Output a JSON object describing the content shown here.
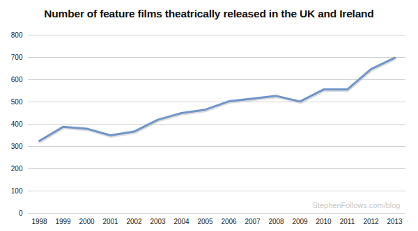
{
  "chart_data": {
    "type": "line",
    "title": "Number of feature films theatrically released in the UK and Ireland",
    "categories": [
      "1998",
      "1999",
      "2000",
      "2001",
      "2002",
      "2003",
      "2004",
      "2005",
      "2006",
      "2007",
      "2008",
      "2009",
      "2010",
      "2011",
      "2012",
      "2013"
    ],
    "values": [
      325,
      388,
      380,
      350,
      367,
      420,
      450,
      465,
      503,
      515,
      527,
      502,
      556,
      556,
      647,
      698
    ],
    "color": "#6f95c8",
    "ylim": [
      0,
      800
    ],
    "yticks": [
      0,
      100,
      200,
      300,
      400,
      500,
      600,
      700,
      800
    ],
    "grid": true,
    "annotations": [
      "StephenFollows.com/blog"
    ]
  }
}
